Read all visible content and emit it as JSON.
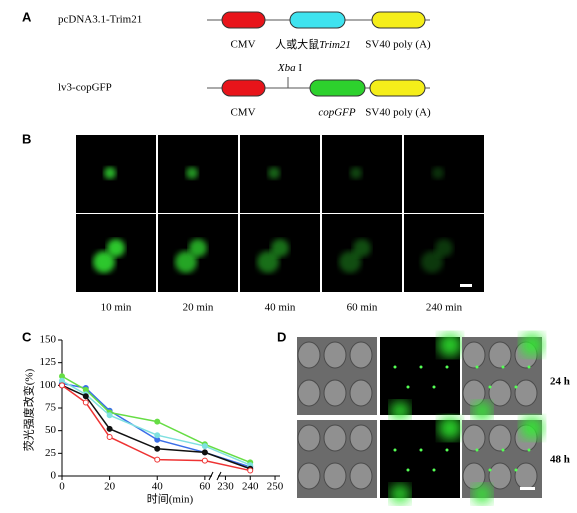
{
  "panel_a": {
    "label": "A",
    "constructs": [
      {
        "name": "pcDNA3.1-Trim21",
        "labels": [
          "CMV",
          {
            "prefix": "人或大鼠",
            "italic": "Trim21"
          },
          "SV40 poly (A)"
        ]
      },
      {
        "name": "lv3-copGFP",
        "site": {
          "italic": "Xba",
          "suffix": " I"
        },
        "labels": [
          "CMV",
          {
            "italic": "copGFP"
          },
          "SV40 poly (A)"
        ]
      }
    ]
  },
  "panel_b": {
    "label": "B",
    "times": [
      "10 min",
      "20 min",
      "40 min",
      "60 min",
      "240 min"
    ]
  },
  "panel_d": {
    "label": "D",
    "rows": [
      "24 h",
      "48 h"
    ]
  },
  "chart_data": {
    "type": "line",
    "label": "C",
    "ylabel": "荧光强度改变(%)",
    "xlabel": "时间(min)",
    "x": [
      0,
      10,
      20,
      40,
      60,
      240
    ],
    "xlim": [
      0,
      252
    ],
    "xbreak": [
      63,
      227
    ],
    "ylim": [
      0,
      150
    ],
    "xticks": [
      0,
      20,
      40,
      60,
      230,
      240,
      250
    ],
    "yticks": [
      0,
      25,
      50,
      75,
      100,
      125,
      150
    ],
    "series": [
      {
        "name": "blue",
        "color": "#3a6ee8",
        "marker": "filled",
        "values": [
          102,
          97,
          72,
          40,
          26,
          10
        ]
      },
      {
        "name": "green",
        "color": "#66dd44",
        "marker": "filled",
        "values": [
          110,
          95,
          70,
          60,
          35,
          15
        ]
      },
      {
        "name": "cyan",
        "color": "#7fe0e0",
        "marker": "filled",
        "values": [
          105,
          90,
          67,
          45,
          33,
          12
        ]
      },
      {
        "name": "black",
        "color": "#111111",
        "marker": "filled",
        "values": [
          100,
          88,
          52,
          30,
          26,
          8
        ]
      },
      {
        "name": "red",
        "color": "#ee3333",
        "marker": "open",
        "values": [
          100,
          81,
          43,
          18,
          17,
          6
        ]
      }
    ]
  }
}
